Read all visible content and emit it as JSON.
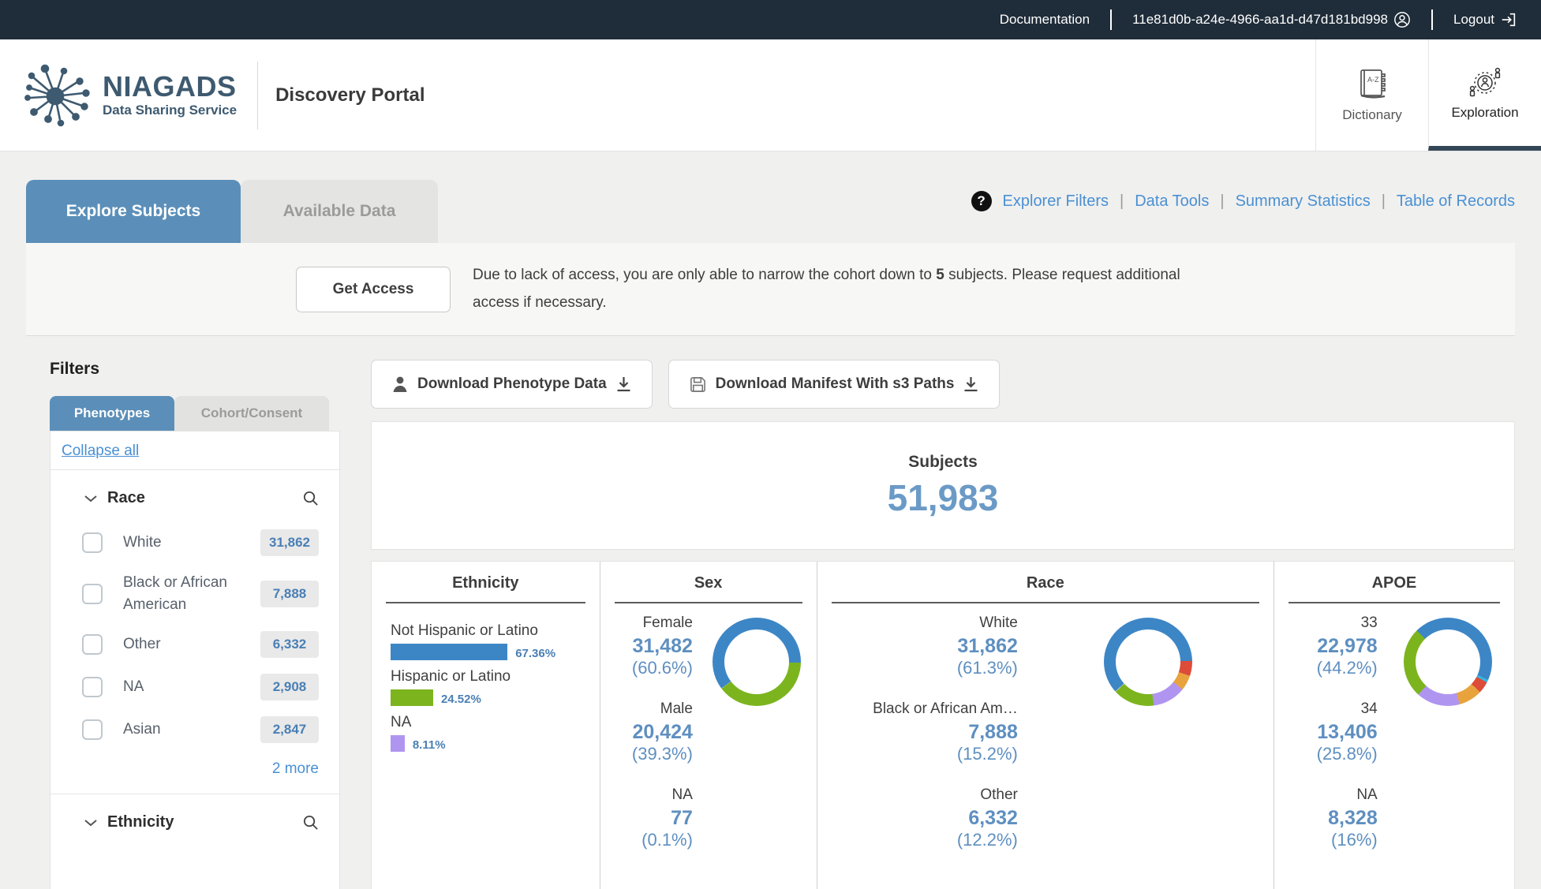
{
  "topbar": {
    "documentation": "Documentation",
    "user_id": "11e81d0b-a24e-4966-aa1d-d47d181bd998",
    "logout": "Logout"
  },
  "header": {
    "brand_name": "NIAGADS",
    "brand_sub": "Data Sharing Service",
    "portal_title": "Discovery Portal",
    "nav": [
      {
        "label": "Dictionary",
        "active": false
      },
      {
        "label": "Exploration",
        "active": true
      }
    ]
  },
  "tabs": [
    {
      "label": "Explore Subjects",
      "active": true
    },
    {
      "label": "Available Data",
      "active": false
    }
  ],
  "quick_links": [
    "Explorer Filters",
    "Data Tools",
    "Summary Statistics",
    "Table of Records"
  ],
  "access_notice": {
    "button_label": "Get Access",
    "text_before": "Due to lack of access, you are only able to narrow the cohort down to ",
    "count": "5",
    "text_after": " subjects. Please request additional access if necessary."
  },
  "filters": {
    "title": "Filters",
    "tabs": [
      {
        "label": "Phenotypes",
        "active": true
      },
      {
        "label": "Cohort/Consent",
        "active": false
      }
    ],
    "collapse_all": "Collapse all",
    "race_section": {
      "label": "Race",
      "items": [
        {
          "label": "White",
          "count": "31,862"
        },
        {
          "label": "Black or African American",
          "count": "7,888"
        },
        {
          "label": "Other",
          "count": "6,332"
        },
        {
          "label": "NA",
          "count": "2,908"
        },
        {
          "label": "Asian",
          "count": "2,847"
        }
      ],
      "more_label": "2 more"
    },
    "ethnicity_section": {
      "label": "Ethnicity"
    }
  },
  "downloads": [
    {
      "label": "Download Phenotype Data",
      "icon": "person-icon"
    },
    {
      "label": "Download Manifest With s3 Paths",
      "icon": "save-icon"
    }
  ],
  "subjects": {
    "label": "Subjects",
    "count": "51,983"
  },
  "colors": {
    "blue": "#3d86c6",
    "green": "#7cb41e",
    "purple": "#b095f0",
    "orange": "#e8a33d",
    "red": "#dd4b39",
    "cyan": "#35b8e0",
    "accent_blue": "#4a90d2",
    "stat_blue": "#5e8fc0",
    "tab_blue": "#5b8fb9"
  },
  "chart_data": [
    {
      "type": "bar",
      "title": "Ethnicity",
      "categories": [
        "Not Hispanic or Latino",
        "Hispanic or Latino",
        "NA"
      ],
      "values": [
        67.36,
        24.52,
        8.11
      ],
      "value_labels": [
        "67.36%",
        "24.52%",
        "8.11%"
      ],
      "bar_colors": [
        "#3d86c6",
        "#7cb41e",
        "#b095f0"
      ],
      "xlabel": "",
      "ylabel": ""
    },
    {
      "type": "donut",
      "title": "Sex",
      "rotation": 233,
      "stats": [
        {
          "label": "Female",
          "value": "31,482",
          "pct": "(60.6%)"
        },
        {
          "label": "Male",
          "value": "20,424",
          "pct": "(39.3%)"
        },
        {
          "label": "NA",
          "value": "77",
          "pct": "(0.1%)"
        }
      ],
      "segments": [
        {
          "label": "Female",
          "pct": 60.6,
          "color": "#3d86c6"
        },
        {
          "label": "Male",
          "pct": 39.3,
          "color": "#7cb41e"
        },
        {
          "label": "NA",
          "pct": 0.1,
          "color": "#d3d3d3"
        }
      ]
    },
    {
      "type": "donut",
      "title": "Race",
      "rotation": 228,
      "stats": [
        {
          "label": "White",
          "value": "31,862",
          "pct": "(61.3%)"
        },
        {
          "label": "Black or African Am…",
          "value": "7,888",
          "pct": "(15.2%)"
        },
        {
          "label": "Other",
          "value": "6,332",
          "pct": "(12.2%)"
        }
      ],
      "segments": [
        {
          "label": "White",
          "pct": 61.3,
          "color": "#3d86c6"
        },
        {
          "label": "Asian",
          "pct": 5.5,
          "color": "#dd4b39"
        },
        {
          "label": "NA",
          "pct": 5.6,
          "color": "#e8a33d"
        },
        {
          "label": "Other",
          "pct": 12.2,
          "color": "#b095f0"
        },
        {
          "label": "Black or African American",
          "pct": 15.2,
          "color": "#7cb41e"
        },
        {
          "label": "",
          "pct": 0.2,
          "color": "#d3d3d3"
        }
      ]
    },
    {
      "type": "donut",
      "title": "APOE",
      "rotation": 315,
      "stats": [
        {
          "label": "33",
          "value": "22,978",
          "pct": "(44.2%)"
        },
        {
          "label": "34",
          "value": "13,406",
          "pct": "(25.8%)"
        },
        {
          "label": "NA",
          "value": "8,328",
          "pct": "(16%)"
        }
      ],
      "segments": [
        {
          "label": "33",
          "pct": 44.2,
          "color": "#3d86c6"
        },
        {
          "label": "",
          "pct": 1.0,
          "color": "#35b8e0"
        },
        {
          "label": "",
          "pct": 4.3,
          "color": "#dd4b39"
        },
        {
          "label": "",
          "pct": 8.7,
          "color": "#e8a33d"
        },
        {
          "label": "NA",
          "pct": 16.0,
          "color": "#b095f0"
        },
        {
          "label": "34",
          "pct": 25.8,
          "color": "#7cb41e"
        }
      ]
    }
  ]
}
